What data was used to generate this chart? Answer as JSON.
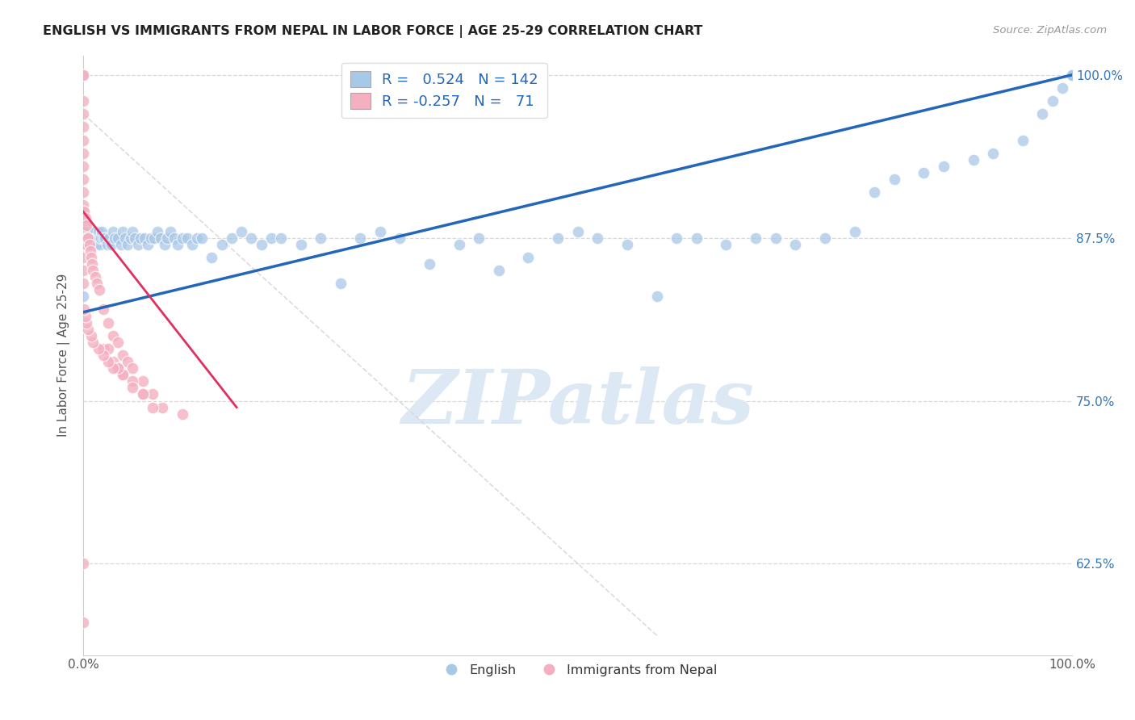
{
  "title": "ENGLISH VS IMMIGRANTS FROM NEPAL IN LABOR FORCE | AGE 25-29 CORRELATION CHART",
  "source": "Source: ZipAtlas.com",
  "ylabel": "In Labor Force | Age 25-29",
  "ytick_labels": [
    "62.5%",
    "75.0%",
    "87.5%",
    "100.0%"
  ],
  "ytick_values": [
    0.625,
    0.75,
    0.875,
    1.0
  ],
  "legend_label_english": "English",
  "legend_label_nepal": "Immigrants from Nepal",
  "blue_color": "#a8c8e8",
  "pink_color": "#f4afc0",
  "trend_blue": "#2266bb",
  "trend_pink": "#e03060",
  "trend_dashed": "#c8c8c8",
  "english_scatter_x": [
    0.0,
    0.0,
    0.001,
    0.001,
    0.002,
    0.002,
    0.003,
    0.003,
    0.004,
    0.004,
    0.005,
    0.005,
    0.006,
    0.007,
    0.008,
    0.009,
    0.01,
    0.011,
    0.012,
    0.013,
    0.014,
    0.015,
    0.016,
    0.017,
    0.018,
    0.019,
    0.02,
    0.022,
    0.024,
    0.026,
    0.028,
    0.03,
    0.032,
    0.035,
    0.038,
    0.04,
    0.042,
    0.045,
    0.048,
    0.05,
    0.052,
    0.055,
    0.058,
    0.062,
    0.065,
    0.068,
    0.072,
    0.075,
    0.078,
    0.082,
    0.085,
    0.088,
    0.092,
    0.095,
    0.1,
    0.105,
    0.11,
    0.115,
    0.12,
    0.13,
    0.14,
    0.15,
    0.16,
    0.17,
    0.18,
    0.19,
    0.2,
    0.22,
    0.24,
    0.26,
    0.28,
    0.3,
    0.32,
    0.35,
    0.38,
    0.4,
    0.42,
    0.45,
    0.48,
    0.5,
    0.52,
    0.55,
    0.58,
    0.6,
    0.62,
    0.65,
    0.68,
    0.7,
    0.72,
    0.75,
    0.78,
    0.8,
    0.82,
    0.85,
    0.87,
    0.9,
    0.92,
    0.95,
    0.97,
    0.98,
    0.99,
    1.0,
    1.0,
    1.0,
    1.0,
    1.0,
    1.0,
    1.0,
    1.0,
    1.0,
    1.0,
    1.0,
    1.0,
    1.0,
    1.0,
    1.0,
    1.0,
    1.0,
    1.0,
    1.0,
    1.0,
    1.0,
    1.0,
    1.0,
    1.0,
    1.0,
    1.0,
    1.0,
    1.0,
    1.0,
    1.0,
    1.0,
    1.0,
    1.0,
    1.0,
    1.0,
    1.0,
    1.0,
    1.0,
    1.0,
    1.0,
    1.0
  ],
  "english_scatter_y": [
    0.83,
    0.875,
    0.88,
    0.875,
    0.87,
    0.885,
    0.875,
    0.88,
    0.875,
    0.87,
    0.875,
    0.88,
    0.87,
    0.875,
    0.88,
    0.87,
    0.875,
    0.88,
    0.875,
    0.87,
    0.875,
    0.88,
    0.875,
    0.87,
    0.875,
    0.88,
    0.875,
    0.875,
    0.87,
    0.875,
    0.87,
    0.88,
    0.875,
    0.875,
    0.87,
    0.88,
    0.875,
    0.87,
    0.875,
    0.88,
    0.875,
    0.87,
    0.875,
    0.875,
    0.87,
    0.875,
    0.875,
    0.88,
    0.875,
    0.87,
    0.875,
    0.88,
    0.875,
    0.87,
    0.875,
    0.875,
    0.87,
    0.875,
    0.875,
    0.86,
    0.87,
    0.875,
    0.88,
    0.875,
    0.87,
    0.875,
    0.875,
    0.87,
    0.875,
    0.84,
    0.875,
    0.88,
    0.875,
    0.855,
    0.87,
    0.875,
    0.85,
    0.86,
    0.875,
    0.88,
    0.875,
    0.87,
    0.83,
    0.875,
    0.875,
    0.87,
    0.875,
    0.875,
    0.87,
    0.875,
    0.88,
    0.91,
    0.92,
    0.925,
    0.93,
    0.935,
    0.94,
    0.95,
    0.97,
    0.98,
    0.99,
    1.0,
    1.0,
    1.0,
    1.0,
    1.0,
    1.0,
    1.0,
    1.0,
    1.0,
    1.0,
    1.0,
    1.0,
    1.0,
    1.0,
    1.0,
    1.0,
    1.0,
    1.0,
    1.0,
    1.0,
    1.0,
    1.0,
    1.0,
    1.0,
    1.0,
    1.0,
    1.0,
    1.0,
    1.0,
    1.0,
    1.0,
    1.0,
    1.0,
    1.0,
    1.0,
    1.0,
    1.0,
    1.0,
    1.0,
    1.0,
    1.0
  ],
  "nepal_scatter_x": [
    0.0,
    0.0,
    0.0,
    0.0,
    0.0,
    0.0,
    0.0,
    0.0,
    0.0,
    0.0,
    0.0,
    0.0,
    0.0,
    0.0,
    0.0,
    0.0,
    0.0,
    0.0,
    0.0,
    0.0,
    0.001,
    0.001,
    0.002,
    0.002,
    0.003,
    0.003,
    0.004,
    0.005,
    0.006,
    0.007,
    0.008,
    0.009,
    0.01,
    0.012,
    0.014,
    0.016,
    0.02,
    0.025,
    0.03,
    0.035,
    0.04,
    0.045,
    0.05,
    0.06,
    0.07,
    0.08,
    0.1,
    0.02,
    0.025,
    0.03,
    0.035,
    0.04,
    0.05,
    0.06,
    0.07,
    0.06,
    0.05,
    0.04,
    0.035,
    0.03,
    0.025,
    0.02,
    0.015,
    0.01,
    0.008,
    0.005,
    0.003,
    0.002,
    0.001,
    0.0,
    0.0
  ],
  "nepal_scatter_y": [
    1.0,
    1.0,
    0.98,
    0.97,
    0.96,
    0.95,
    0.94,
    0.93,
    0.92,
    0.91,
    0.9,
    0.895,
    0.89,
    0.88,
    0.875,
    0.87,
    0.87,
    0.86,
    0.85,
    0.84,
    0.895,
    0.88,
    0.89,
    0.875,
    0.885,
    0.87,
    0.875,
    0.875,
    0.87,
    0.865,
    0.86,
    0.855,
    0.85,
    0.845,
    0.84,
    0.835,
    0.82,
    0.81,
    0.8,
    0.795,
    0.785,
    0.78,
    0.775,
    0.765,
    0.755,
    0.745,
    0.74,
    0.79,
    0.79,
    0.78,
    0.775,
    0.77,
    0.765,
    0.755,
    0.745,
    0.755,
    0.76,
    0.77,
    0.775,
    0.775,
    0.78,
    0.785,
    0.79,
    0.795,
    0.8,
    0.805,
    0.81,
    0.815,
    0.82,
    0.625,
    0.58
  ],
  "english_trend": [
    0.0,
    1.0,
    0.818,
    1.0
  ],
  "nepal_trend": [
    0.0,
    0.155,
    0.895,
    0.745
  ],
  "dashed_trend": [
    0.0,
    0.58,
    0.97,
    0.57
  ],
  "xlim": [
    0.0,
    1.0
  ],
  "ylim": [
    0.555,
    1.015
  ],
  "grid_color": "#d8d8d8",
  "watermark": "ZIPatlas",
  "watermark_color": "#dce8f4"
}
